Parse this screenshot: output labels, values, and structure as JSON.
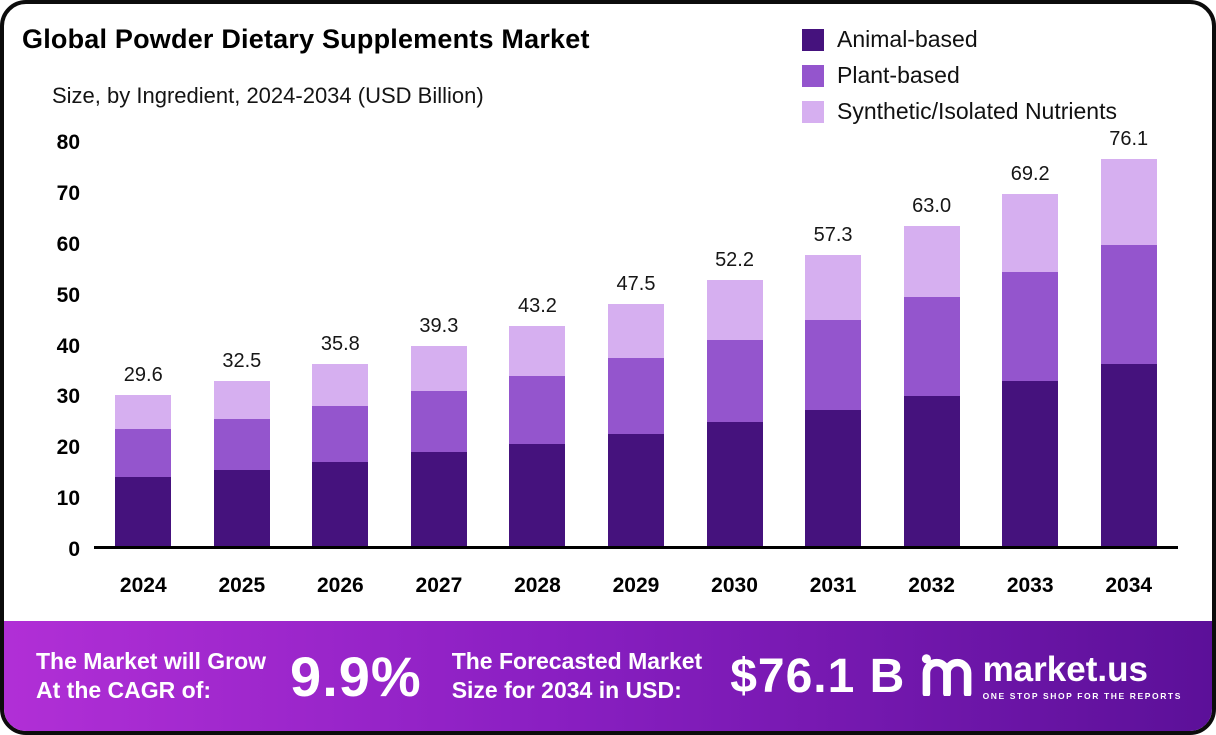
{
  "header": {
    "title": "Global Powder Dietary Supplements Market",
    "subtitle": "Size, by Ingredient, 2024-2034 (USD Billion)"
  },
  "legend": [
    {
      "label": "Animal-based",
      "color": "#45127d"
    },
    {
      "label": "Plant-based",
      "color": "#9455cd"
    },
    {
      "label": "Synthetic/Isolated Nutrients",
      "color": "#d6aff0"
    }
  ],
  "chart_data": {
    "type": "bar",
    "stacked": true,
    "title": "Global Powder Dietary Supplements Market Size, by Ingredient, 2024-2034 (USD Billion)",
    "categories": [
      "2024",
      "2025",
      "2026",
      "2027",
      "2028",
      "2029",
      "2030",
      "2031",
      "2032",
      "2033",
      "2034"
    ],
    "series": [
      {
        "name": "Animal-based",
        "color": "#45127d",
        "values": [
          13.5,
          15.0,
          16.5,
          18.5,
          20.0,
          22.0,
          24.3,
          26.7,
          29.5,
          32.5,
          35.7
        ]
      },
      {
        "name": "Plant-based",
        "color": "#9455cd",
        "values": [
          9.5,
          10.0,
          11.0,
          12.0,
          13.5,
          15.0,
          16.2,
          17.8,
          19.5,
          21.3,
          23.5
        ]
      },
      {
        "name": "Synthetic/Isolated Nutrients",
        "color": "#d6aff0",
        "values": [
          6.6,
          7.5,
          8.3,
          8.8,
          9.7,
          10.5,
          11.7,
          12.8,
          14.0,
          15.4,
          16.9
        ]
      }
    ],
    "totals": [
      "29.6",
      "32.5",
      "35.8",
      "39.3",
      "43.2",
      "47.5",
      "52.2",
      "57.3",
      "63.0",
      "69.2",
      "76.1"
    ],
    "xlabel": "",
    "ylabel": "",
    "ylim": [
      0,
      80
    ],
    "yticks": [
      0,
      10,
      20,
      30,
      40,
      50,
      60,
      70,
      80
    ],
    "grid": false,
    "legend_position": "top-right"
  },
  "footer": {
    "gradient": [
      "#b12fd6",
      "#8a1fc2",
      "#5c1099"
    ],
    "cagr_label_line1": "The Market will Grow",
    "cagr_label_line2": "At the CAGR of:",
    "cagr_value": "9.9%",
    "forecast_label_line1": "The Forecasted Market",
    "forecast_label_line2": "Size for 2034 in USD:",
    "forecast_value": "$76.1 B",
    "brand": "market.us",
    "brand_tagline": "ONE STOP SHOP FOR THE REPORTS"
  }
}
